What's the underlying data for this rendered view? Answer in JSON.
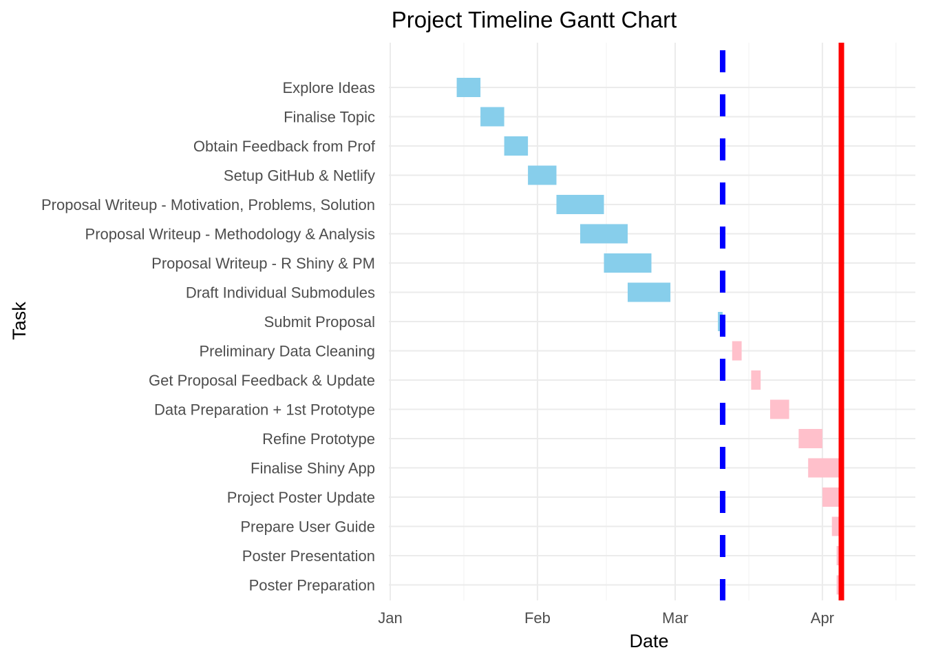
{
  "chart_data": {
    "type": "gantt",
    "title": "Project Timeline Gantt Chart",
    "xlabel": "Date",
    "ylabel": "Task",
    "x_ticks": [
      {
        "label": "Jan",
        "date": "2024-01-01"
      },
      {
        "label": "Feb",
        "date": "2024-02-01"
      },
      {
        "label": "Mar",
        "date": "2024-03-01"
      },
      {
        "label": "Apr",
        "date": "2024-04-01"
      }
    ],
    "xlim": [
      "2024-01-01",
      "2024-05-20"
    ],
    "grid": true,
    "colors": {
      "phase1": "#87ceeb",
      "phase2": "#ffc0cb",
      "dashed_line": "#0000ff",
      "solid_line": "#ff0000"
    },
    "tasks": [
      {
        "name": "Explore Ideas",
        "start": "2024-01-15",
        "end": "2024-01-20",
        "phase": "phase1"
      },
      {
        "name": "Finalise Topic",
        "start": "2024-01-20",
        "end": "2024-01-25",
        "phase": "phase1"
      },
      {
        "name": "Obtain Feedback from Prof",
        "start": "2024-01-25",
        "end": "2024-01-30",
        "phase": "phase1"
      },
      {
        "name": "Setup GitHub & Netlify",
        "start": "2024-01-30",
        "end": "2024-02-05",
        "phase": "phase1"
      },
      {
        "name": "Proposal Writeup - Motivation, Problems, Solution",
        "start": "2024-02-05",
        "end": "2024-02-15",
        "phase": "phase1"
      },
      {
        "name": "Proposal Writeup - Methodology & Analysis",
        "start": "2024-02-10",
        "end": "2024-02-20",
        "phase": "phase1"
      },
      {
        "name": "Proposal Writeup - R Shiny & PM",
        "start": "2024-02-15",
        "end": "2024-02-25",
        "phase": "phase1"
      },
      {
        "name": "Draft Individual Submodules",
        "start": "2024-02-20",
        "end": "2024-02-29",
        "phase": "phase1"
      },
      {
        "name": "Submit Proposal",
        "start": "2024-03-10",
        "end": "2024-03-11",
        "phase": "phase1"
      },
      {
        "name": "Preliminary Data Cleaning",
        "start": "2024-03-13",
        "end": "2024-03-15",
        "phase": "phase2"
      },
      {
        "name": "Get Proposal Feedback & Update",
        "start": "2024-03-17",
        "end": "2024-03-19",
        "phase": "phase2"
      },
      {
        "name": "Data Preparation + 1st Prototype",
        "start": "2024-03-21",
        "end": "2024-03-25",
        "phase": "phase2"
      },
      {
        "name": "Refine Prototype",
        "start": "2024-03-27",
        "end": "2024-04-01",
        "phase": "phase2"
      },
      {
        "name": "Finalise Shiny App",
        "start": "2024-03-29",
        "end": "2024-04-05",
        "phase": "phase2"
      },
      {
        "name": "Project Poster Update",
        "start": "2024-04-01",
        "end": "2024-04-05",
        "phase": "phase2"
      },
      {
        "name": "Prepare User Guide",
        "start": "2024-04-03",
        "end": "2024-04-05",
        "phase": "phase2"
      },
      {
        "name": "Poster Presentation",
        "start": "2024-04-04",
        "end": "2024-04-05",
        "phase": "phase2"
      },
      {
        "name": "Poster Preparation",
        "start": "2024-04-04",
        "end": "2024-04-05",
        "phase": "phase2"
      }
    ],
    "reference_lines": [
      {
        "date": "2024-03-11",
        "style": "dashed",
        "color": "#0000ff"
      },
      {
        "date": "2024-04-05",
        "style": "solid",
        "color": "#ff0000"
      }
    ]
  }
}
